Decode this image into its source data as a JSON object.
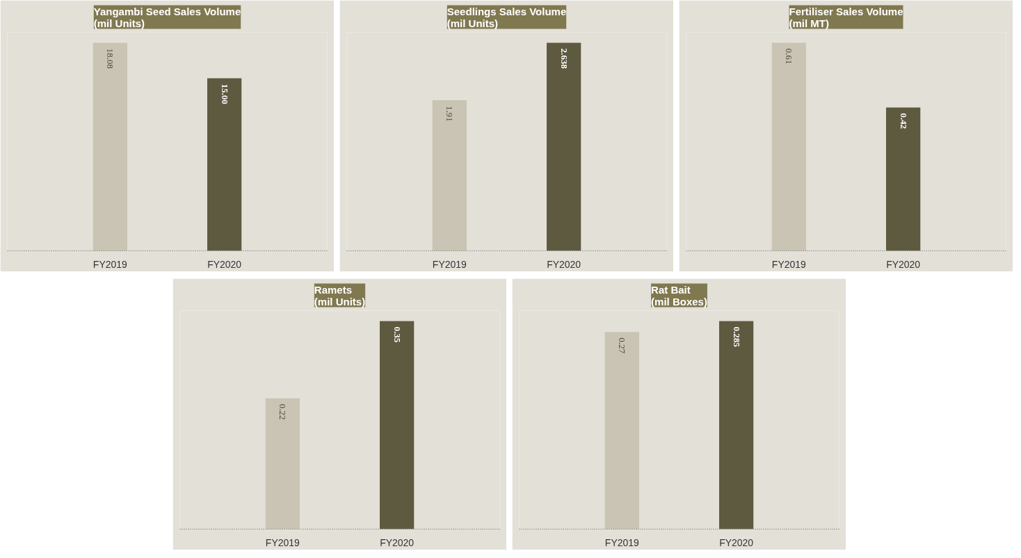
{
  "chart_data": [
    {
      "type": "bar",
      "title": "Yangambi Seed Sales Volume\n(mil Units)",
      "categories": [
        "FY2019",
        "FY2020"
      ],
      "values": [
        18.08,
        15.0
      ],
      "value_labels": [
        "18.08",
        "15.00"
      ],
      "colors": [
        "#c9c4b3",
        "#5e5a40"
      ]
    },
    {
      "type": "bar",
      "title": "Seedlings Sales Volume\n(mil Units)",
      "categories": [
        "FY2019",
        "FY2020"
      ],
      "values": [
        1.91,
        2.638
      ],
      "data_labels": true,
      "colors": [
        "#c9c4b3",
        "#5e5a40"
      ]
    },
    {
      "type": "bar",
      "title": "Fertiliser Sales Volume\n(mil MT)",
      "categories": [
        "FY2019",
        "FY2020"
      ],
      "values": [
        0.61,
        0.42
      ],
      "data_labels": true,
      "colors": [
        "#c9c4b3",
        "#5e5a40"
      ]
    },
    {
      "type": "bar",
      "title": "Ramets\n(mil Units)",
      "categories": [
        "FY2019",
        "FY2020"
      ],
      "values": [
        0.22,
        0.35
      ],
      "data_labels": true,
      "colors": [
        "#c9c4b3",
        "#5e5a40"
      ]
    },
    {
      "type": "bar",
      "title": "Rat Bait\n(mil Boxes)",
      "categories": [
        "FY2019",
        "FY2020"
      ],
      "values": [
        0.27,
        0.285
      ],
      "data_labels": true,
      "colors": [
        "#c9c4b3",
        "#5e5a40"
      ]
    }
  ]
}
